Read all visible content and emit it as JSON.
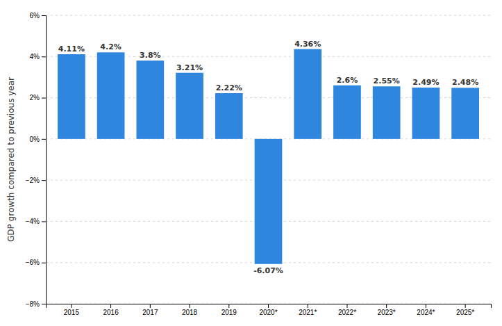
{
  "chart_data": {
    "type": "bar",
    "ylabel": "GDP growth compared to previous year",
    "categories": [
      "2015",
      "2016",
      "2017",
      "2018",
      "2019",
      "2020*",
      "2021*",
      "2022*",
      "2023*",
      "2024*",
      "2025*"
    ],
    "values": [
      4.11,
      4.2,
      3.8,
      3.21,
      2.22,
      -6.07,
      4.36,
      2.6,
      2.55,
      2.49,
      2.48
    ],
    "value_labels": [
      "4.11%",
      "4.2%",
      "3.8%",
      "3.21%",
      "2.22%",
      "-6.07%",
      "4.36%",
      "2.6%",
      "2.55%",
      "2.49%",
      "2.48%"
    ],
    "data_labels": true,
    "color": "#2e86de",
    "ylim": [
      -8,
      6
    ],
    "yticks": [
      {
        "value": -8,
        "label": "−8%"
      },
      {
        "value": -6,
        "label": "−6%"
      },
      {
        "value": -4,
        "label": "−4%"
      },
      {
        "value": -2,
        "label": "−2%"
      },
      {
        "value": 0,
        "label": "0%"
      },
      {
        "value": 2,
        "label": "2%"
      },
      {
        "value": 4,
        "label": "4%"
      },
      {
        "value": 6,
        "label": "6%"
      }
    ],
    "grid": true
  }
}
